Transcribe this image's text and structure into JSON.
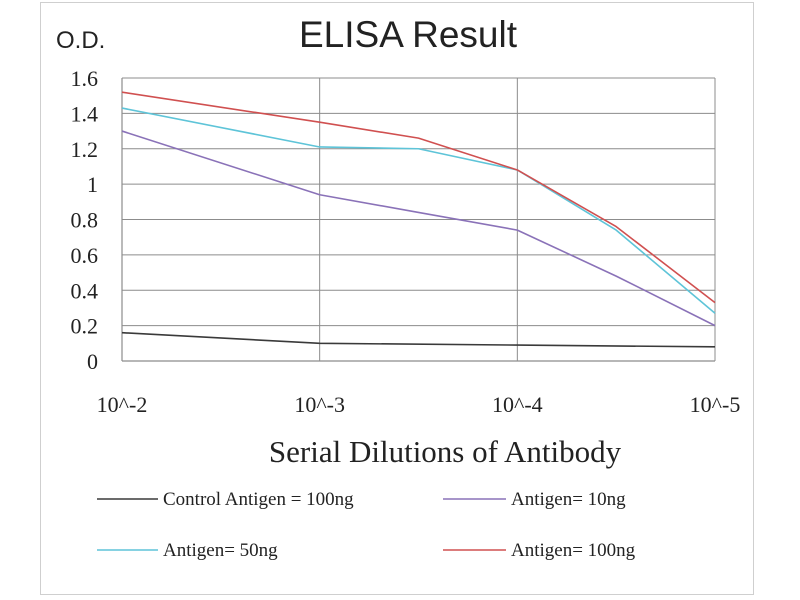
{
  "chart_data": {
    "type": "line",
    "title": "ELISA Result",
    "ylabel": "O.D.",
    "xlabel": "Serial Dilutions  of Antibody",
    "categories": [
      "10^-2",
      "10^-3",
      "10^-4",
      "10^-5"
    ],
    "x": [
      0,
      1,
      2,
      3
    ],
    "y_ticks": [
      "0",
      "0.2",
      "0.4",
      "0.6",
      "0.8",
      "1",
      "1.2",
      "1.4",
      "1.6"
    ],
    "ylim": [
      0,
      1.6
    ],
    "grid": true,
    "legend_position": "bottom",
    "series": [
      {
        "name": "Control Antigen = 100ng",
        "color": "#3a3a3a",
        "points": [
          [
            0,
            0.16
          ],
          [
            1,
            0.1
          ],
          [
            2,
            0.09
          ],
          [
            3,
            0.08
          ]
        ]
      },
      {
        "name": "Antigen= 10ng",
        "color": "#8a72b8",
        "points": [
          [
            0,
            1.3
          ],
          [
            1,
            0.94
          ],
          [
            1.5,
            0.84
          ],
          [
            2,
            0.74
          ],
          [
            2.5,
            0.48
          ],
          [
            3,
            0.2
          ]
        ]
      },
      {
        "name": "Antigen= 50ng",
        "color": "#5ec4d8",
        "points": [
          [
            0,
            1.43
          ],
          [
            1,
            1.21
          ],
          [
            1.5,
            1.2
          ],
          [
            2,
            1.08
          ],
          [
            2.5,
            0.74
          ],
          [
            3,
            0.27
          ]
        ]
      },
      {
        "name": "Antigen= 100ng",
        "color": "#d05050",
        "points": [
          [
            0,
            1.52
          ],
          [
            1,
            1.35
          ],
          [
            1.5,
            1.26
          ],
          [
            2,
            1.08
          ],
          [
            2.5,
            0.76
          ],
          [
            3,
            0.33
          ]
        ]
      }
    ]
  }
}
